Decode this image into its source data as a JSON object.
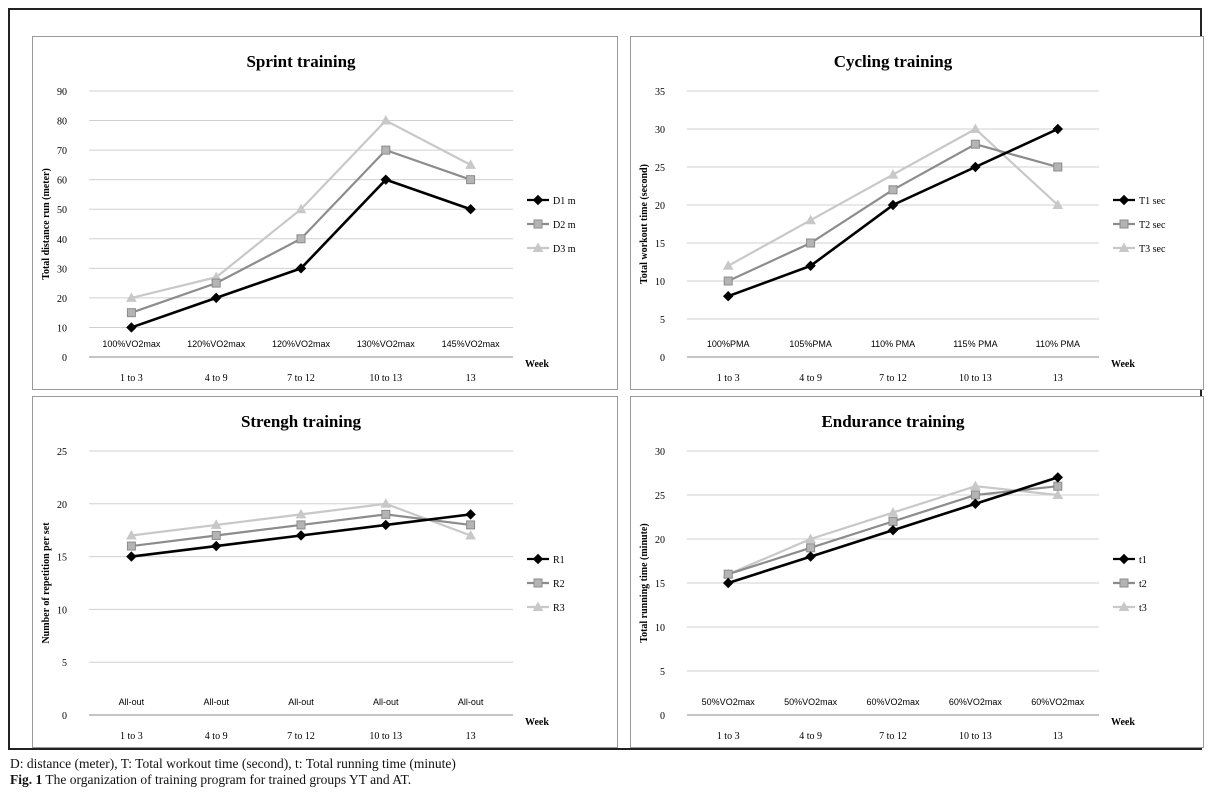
{
  "charts": [
    {
      "type": "line",
      "title": "Sprint training",
      "ylabel": "Total distance run (meter)",
      "xlabel": "Week",
      "categories": [
        "1 to 3",
        "4 to 9",
        "7 to 12",
        "10 to 13",
        "13"
      ],
      "ylim": [
        0,
        90
      ],
      "ystep": 10,
      "intensity": [
        "100%VO2max",
        "120%VO2max",
        "120%VO2max",
        "130%VO2max",
        "145%VO2max"
      ],
      "series": [
        {
          "name": "D1 m",
          "marker": "diamond",
          "color": "#000000",
          "values": [
            10,
            20,
            30,
            60,
            50
          ]
        },
        {
          "name": "D2 m",
          "marker": "square",
          "color": "#8c8c8c",
          "values": [
            15,
            25,
            40,
            70,
            60
          ]
        },
        {
          "name": "D3 m",
          "marker": "triangle",
          "color": "#c8c8c8",
          "values": [
            20,
            27,
            50,
            80,
            65
          ]
        }
      ],
      "legend": "right"
    },
    {
      "type": "line",
      "title": "Cycling training",
      "ylabel": "Total workout time (second)",
      "xlabel": "Week",
      "categories": [
        "1 to 3",
        "4 to 9",
        "7 to 12",
        "10 to 13",
        "13"
      ],
      "ylim": [
        0,
        35
      ],
      "ystep": 5,
      "intensity": [
        "100%PMA",
        "105%PMA",
        "110% PMA",
        "115% PMA",
        "110% PMA"
      ],
      "series": [
        {
          "name": "T1 sec",
          "marker": "diamond",
          "color": "#000000",
          "values": [
            8,
            12,
            20,
            25,
            30
          ]
        },
        {
          "name": "T2 sec",
          "marker": "square",
          "color": "#8c8c8c",
          "values": [
            10,
            15,
            22,
            28,
            25
          ]
        },
        {
          "name": "T3 sec",
          "marker": "triangle",
          "color": "#c8c8c8",
          "values": [
            12,
            18,
            24,
            30,
            20
          ]
        }
      ],
      "legend": "right"
    },
    {
      "type": "line",
      "title": "Strengh training",
      "ylabel": "Number of repetition per set",
      "xlabel": "Week",
      "categories": [
        "1 to 3",
        "4 to 9",
        "7 to 12",
        "10 to 13",
        "13"
      ],
      "ylim": [
        0,
        25
      ],
      "ystep": 5,
      "intensity": [
        "All-out",
        "All-out",
        "All-out",
        "All-out",
        "All-out"
      ],
      "series": [
        {
          "name": "R1",
          "marker": "diamond",
          "color": "#000000",
          "values": [
            15,
            16,
            17,
            18,
            19
          ]
        },
        {
          "name": "R2",
          "marker": "square",
          "color": "#8c8c8c",
          "values": [
            16,
            17,
            18,
            19,
            18
          ]
        },
        {
          "name": "R3",
          "marker": "triangle",
          "color": "#c8c8c8",
          "values": [
            17,
            18,
            19,
            20,
            17
          ]
        }
      ],
      "legend": "right"
    },
    {
      "type": "line",
      "title": "Endurance training",
      "ylabel": "Total running time (minute)",
      "xlabel": "Week",
      "categories": [
        "1 to 3",
        "4 to 9",
        "7 to 12",
        "10 to 13",
        "13"
      ],
      "ylim": [
        0,
        30
      ],
      "ystep": 5,
      "intensity": [
        "50%VO2max",
        "50%VO2max",
        "60%VO2max",
        "60%VO2max",
        "60%VO2max"
      ],
      "series": [
        {
          "name": "t1",
          "marker": "diamond",
          "color": "#000000",
          "values": [
            15,
            18,
            21,
            24,
            27
          ]
        },
        {
          "name": "t2",
          "marker": "square",
          "color": "#8c8c8c",
          "values": [
            16,
            19,
            22,
            25,
            26
          ]
        },
        {
          "name": "t3",
          "marker": "triangle",
          "color": "#c8c8c8",
          "values": [
            16,
            20,
            23,
            26,
            25
          ]
        }
      ],
      "legend": "right"
    }
  ],
  "footnote": "D: distance (meter), T: Total workout time (second), t: Total running time (minute)",
  "figure_label": "Fig. 1",
  "figure_caption": " The organization of training program for trained groups YT and AT."
}
